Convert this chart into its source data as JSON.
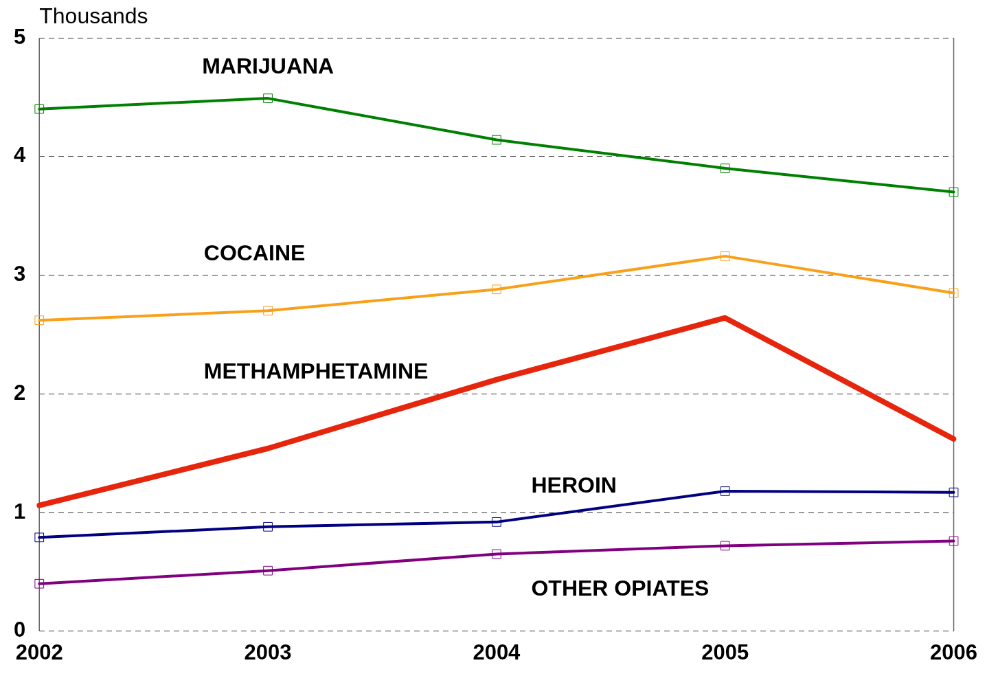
{
  "chart_data": {
    "type": "line",
    "ylabel": "Thousands",
    "categories": [
      "2002",
      "2003",
      "2004",
      "2005",
      "2006"
    ],
    "series": [
      {
        "name": "MARIJUANA",
        "color": "#008000",
        "marker": "square",
        "values": [
          4.4,
          4.49,
          4.14,
          3.9,
          3.7
        ]
      },
      {
        "name": "COCAINE",
        "color": "#f8a01a",
        "marker": "square",
        "values": [
          2.62,
          2.7,
          2.88,
          3.16,
          2.85
        ]
      },
      {
        "name": "METHAMPHETAMINE",
        "color": "#e6260c",
        "marker": "none",
        "values": [
          1.06,
          1.54,
          2.12,
          2.64,
          1.62
        ]
      },
      {
        "name": "HEROIN",
        "color": "#000080",
        "marker": "square",
        "values": [
          0.79,
          0.88,
          0.92,
          1.18,
          1.17
        ]
      },
      {
        "name": "OTHER OPIATES",
        "color": "#800080",
        "marker": "square",
        "values": [
          0.4,
          0.51,
          0.65,
          0.72,
          0.76
        ]
      }
    ],
    "ylim": [
      0,
      5
    ],
    "yticks": [
      0,
      1,
      2,
      3,
      4,
      5
    ],
    "grid": "y",
    "legend": false
  }
}
